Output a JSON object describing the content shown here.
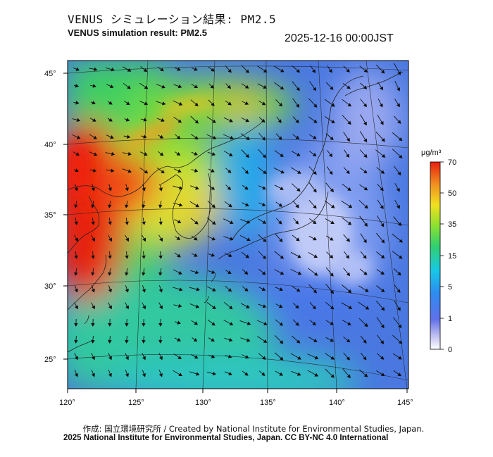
{
  "title_jp": "VENUS シミュレーション結果: PM2.5",
  "title_en": "VENUS simulation result: PM2.5",
  "timestamp": "2025-12-16 00:00JST",
  "unit": "μg/m³",
  "colorbar": {
    "ticks": [
      "70",
      "50",
      "35",
      "15",
      "5",
      "1",
      "0"
    ],
    "colors": [
      "#ffffff",
      "#b8b8f0",
      "#6070e8",
      "#2d8cf0",
      "#18c8e6",
      "#30d070",
      "#8ce030",
      "#f0e020",
      "#f09020",
      "#e82010"
    ]
  },
  "map": {
    "lat_ticks": [
      "45°",
      "40°",
      "35°",
      "30°",
      "25°"
    ],
    "lon_ticks": [
      "120°",
      "125°",
      "130°",
      "135°",
      "140°",
      "145°"
    ]
  },
  "footer": {
    "credit": "作成: 国立環境研究所 / Created by National Institute for Environmental Studies, Japan.",
    "license": "2025 National Institute for Environmental Studies, Japan. CC BY-NC 4.0 International"
  }
}
